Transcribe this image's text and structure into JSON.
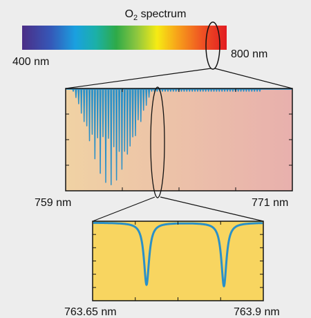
{
  "title": {
    "main": "O",
    "subscript": "2",
    "rest": " spectrum"
  },
  "spectrum_bar": {
    "left_label": "400 nm",
    "right_label": "800 nm"
  },
  "middle_panel": {
    "left_label": "759 nm",
    "right_label": "771 nm"
  },
  "bottom_panel": {
    "left_label": "763.65 nm",
    "right_label": "763.9 nm"
  },
  "colors": {
    "background": "#ededed",
    "trace": "#2a90c8",
    "middle_panel_left": "#f0d2a4",
    "middle_panel_right": "#e8b0ad",
    "bottom_panel": "#f8d560",
    "outline": "#111111"
  }
}
